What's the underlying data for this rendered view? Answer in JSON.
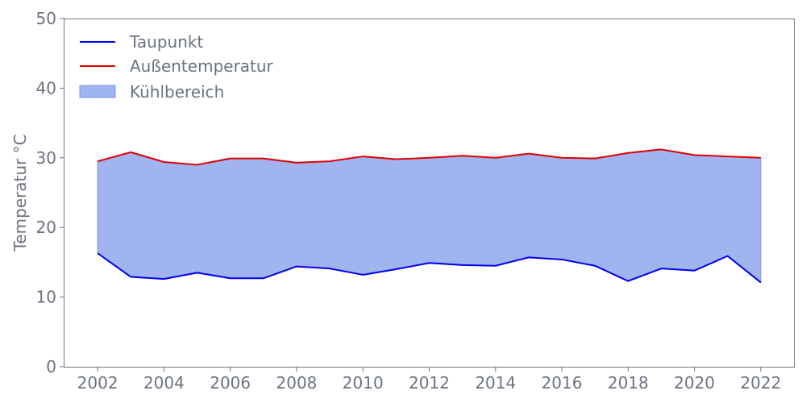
{
  "chart_data": {
    "type": "area",
    "title": "",
    "xlabel": "",
    "ylabel": "Temperatur °C",
    "xlim": [
      2001,
      2023
    ],
    "ylim": [
      0,
      50
    ],
    "x_ticks": [
      2002,
      2004,
      2006,
      2008,
      2010,
      2012,
      2014,
      2016,
      2018,
      2020,
      2022
    ],
    "y_ticks": [
      0,
      10,
      20,
      30,
      40,
      50
    ],
    "grid": false,
    "legend_position": "top-left",
    "x": [
      2002,
      2003,
      2004,
      2005,
      2006,
      2007,
      2008,
      2009,
      2010,
      2011,
      2012,
      2013,
      2014,
      2015,
      2016,
      2017,
      2018,
      2019,
      2020,
      2021,
      2022
    ],
    "series": [
      {
        "name": "Taupunkt",
        "color": "#0000ee",
        "values": [
          16.3,
          12.9,
          12.6,
          13.5,
          12.7,
          12.7,
          14.4,
          14.1,
          13.2,
          14.0,
          14.9,
          14.6,
          14.5,
          15.7,
          15.4,
          14.5,
          12.3,
          14.1,
          13.8,
          15.9,
          12.1
        ]
      },
      {
        "name": "Außentemperatur",
        "color": "#e00000",
        "values": [
          29.5,
          30.8,
          29.4,
          29.0,
          29.9,
          29.9,
          29.3,
          29.5,
          30.2,
          29.8,
          30.0,
          30.3,
          30.0,
          30.6,
          30.0,
          29.9,
          30.7,
          31.2,
          30.4,
          30.2,
          30.0
        ]
      }
    ],
    "fill_between": {
      "name": "Kühlbereich",
      "color": "#a0b4f0",
      "edge_color": "#7d95e8",
      "lower": "Taupunkt",
      "upper": "Außentemperatur"
    },
    "axis_color": "#6b7280"
  }
}
